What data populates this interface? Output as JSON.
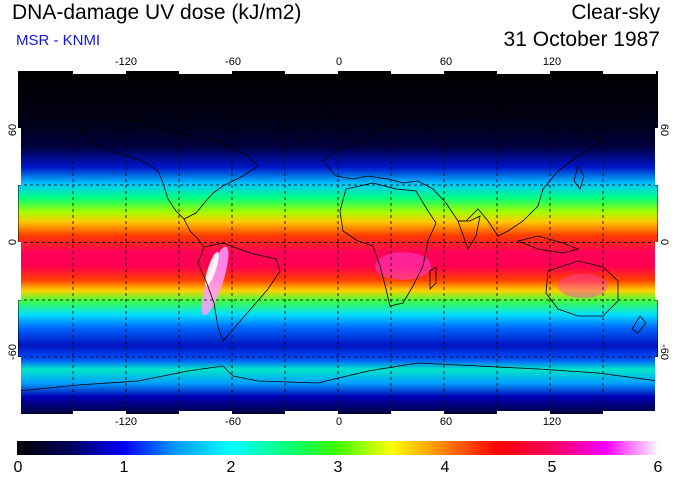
{
  "header": {
    "title": "DNA-damage UV dose (kJ/m2)",
    "subtitle": "MSR - KNMI",
    "product": "Clear-sky",
    "date": "31 October 1987"
  },
  "map": {
    "longitude_ticks": [
      "-120",
      "-60",
      "0",
      "60",
      "120"
    ],
    "latitude_ticks": [
      "60",
      "0",
      "-60"
    ],
    "grid": true,
    "projection": "equirectangular",
    "coastlines": true
  },
  "colorbar": {
    "min": 0,
    "max": 6,
    "labels": [
      "0",
      "1",
      "2",
      "3",
      "4",
      "5",
      "6"
    ],
    "colors": [
      "#000000",
      "#00005a",
      "#0000ff",
      "#00a0ff",
      "#00ffff",
      "#00ff80",
      "#40ff00",
      "#ffff00",
      "#ff8000",
      "#ff0000",
      "#ff0060",
      "#ff00ff",
      "#ffffff"
    ]
  },
  "chart_data": {
    "type": "heatmap",
    "title": "DNA-damage UV dose (kJ/m2)",
    "value_range": [
      0,
      6
    ],
    "approx_zonal_profile": {
      "latitude": [
        90,
        75,
        60,
        50,
        40,
        30,
        20,
        10,
        0,
        -10,
        -20,
        -30,
        -40,
        -50,
        -60,
        -70,
        -80,
        -90
      ],
      "dose": [
        0.0,
        0.05,
        0.6,
        1.3,
        2.2,
        3.2,
        4.3,
        4.8,
        4.9,
        5.0,
        4.8,
        3.6,
        2.5,
        1.8,
        1.4,
        2.3,
        1.2,
        1.0
      ]
    }
  }
}
